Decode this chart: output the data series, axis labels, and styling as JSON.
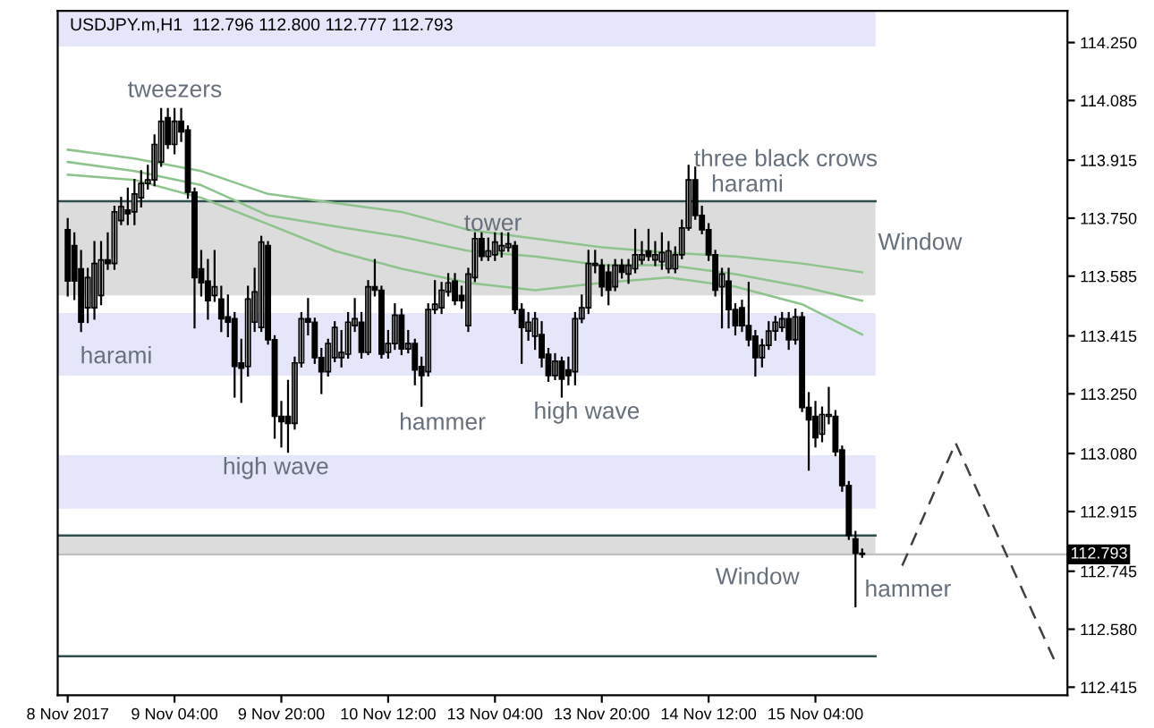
{
  "chart_data": {
    "type": "candlestick",
    "title": "USDJPY.m,H1  112.796 112.800 112.777 112.793",
    "categories": [
      "8 Nov 2017",
      null,
      null,
      null,
      null,
      null,
      null,
      null,
      null,
      null,
      null,
      null,
      null,
      null,
      null,
      null,
      "9 Nov 04:00",
      null,
      null,
      null,
      null,
      null,
      null,
      null,
      null,
      null,
      null,
      null,
      null,
      null,
      null,
      null,
      "9 Nov 20:00",
      null,
      null,
      null,
      null,
      null,
      null,
      null,
      null,
      null,
      null,
      null,
      null,
      null,
      null,
      null,
      "10 Nov 12:00",
      null,
      null,
      null,
      null,
      null,
      null,
      null,
      null,
      null,
      null,
      null,
      null,
      null,
      null,
      null,
      "13 Nov 04:00",
      null,
      null,
      null,
      null,
      null,
      null,
      null,
      null,
      null,
      null,
      null,
      null,
      null,
      null,
      null,
      "13 Nov 20:00",
      null,
      null,
      null,
      null,
      null,
      null,
      null,
      null,
      null,
      null,
      null,
      null,
      null,
      null,
      null,
      "14 Nov 12:00",
      null,
      null,
      null,
      null,
      null,
      null,
      null,
      null,
      null,
      null,
      null,
      null,
      null,
      null,
      null,
      "15 Nov 04:00",
      null,
      null,
      null,
      null,
      null,
      null,
      null,
      null,
      null,
      null,
      null,
      null,
      null,
      null,
      null,
      null,
      null,
      null,
      null,
      null,
      null,
      null,
      null,
      null,
      null,
      null,
      null,
      null,
      null,
      null,
      null,
      null,
      null,
      null,
      null,
      null,
      null
    ],
    "ohlc": [
      [
        113.717,
        113.748,
        113.53,
        113.571
      ],
      [
        113.672,
        113.707,
        113.52,
        113.571
      ],
      [
        113.606,
        113.657,
        113.429,
        113.454
      ],
      [
        113.495,
        113.606,
        113.454,
        113.581
      ],
      [
        113.495,
        113.682,
        113.464,
        113.621
      ],
      [
        113.53,
        113.682,
        113.505,
        113.631
      ],
      [
        113.631,
        113.707,
        113.606,
        113.621
      ],
      [
        113.621,
        113.783,
        113.606,
        113.768
      ],
      [
        113.743,
        113.808,
        113.733,
        113.783
      ],
      [
        113.773,
        113.834,
        113.733,
        113.763
      ],
      [
        113.768,
        113.859,
        113.733,
        113.819
      ],
      [
        113.808,
        113.884,
        113.783,
        113.849
      ],
      [
        113.849,
        113.899,
        113.834,
        113.859
      ],
      [
        113.859,
        113.986,
        113.844,
        113.96
      ],
      [
        113.91,
        114.061,
        113.899,
        114.026
      ],
      [
        114.036,
        114.061,
        113.95,
        113.96
      ],
      [
        113.96,
        114.061,
        113.935,
        114.026
      ],
      [
        114.026,
        114.061,
        113.97,
        113.996
      ],
      [
        114.001,
        114.011,
        113.808,
        113.824
      ],
      [
        113.824,
        113.834,
        113.439,
        113.581
      ],
      [
        113.606,
        113.657,
        113.53,
        113.566
      ],
      [
        113.571,
        113.631,
        113.464,
        113.515
      ],
      [
        113.53,
        113.657,
        113.515,
        113.555
      ],
      [
        113.52,
        113.555,
        113.429,
        113.464
      ],
      [
        113.469,
        113.53,
        113.414,
        113.454
      ],
      [
        113.464,
        113.48,
        113.242,
        113.328
      ],
      [
        113.338,
        113.404,
        113.227,
        113.323
      ],
      [
        113.328,
        113.555,
        113.302,
        113.52
      ],
      [
        113.454,
        113.606,
        113.429,
        113.54
      ],
      [
        113.439,
        113.697,
        113.429,
        113.682
      ],
      [
        113.672,
        113.682,
        113.393,
        113.404
      ],
      [
        113.404,
        113.414,
        113.125,
        113.186
      ],
      [
        113.186,
        113.227,
        113.1,
        113.171
      ],
      [
        113.186,
        113.287,
        113.085,
        113.166
      ],
      [
        113.166,
        113.353,
        113.151,
        113.338
      ],
      [
        113.338,
        113.48,
        113.328,
        113.464
      ],
      [
        113.464,
        113.52,
        113.419,
        113.454
      ],
      [
        113.454,
        113.464,
        113.338,
        113.353
      ],
      [
        113.353,
        113.378,
        113.252,
        113.313
      ],
      [
        113.313,
        113.404,
        113.302,
        113.393
      ],
      [
        113.353,
        113.454,
        113.343,
        113.439
      ],
      [
        113.353,
        113.429,
        113.328,
        113.368
      ],
      [
        113.363,
        113.48,
        113.353,
        113.454
      ],
      [
        113.444,
        113.52,
        113.429,
        113.464
      ],
      [
        113.454,
        113.48,
        113.353,
        113.368
      ],
      [
        113.368,
        113.571,
        113.363,
        113.555
      ],
      [
        113.555,
        113.631,
        113.53,
        113.545
      ],
      [
        113.545,
        113.555,
        113.353,
        113.363
      ],
      [
        113.368,
        113.429,
        113.353,
        113.393
      ],
      [
        113.393,
        113.505,
        113.378,
        113.474
      ],
      [
        113.474,
        113.49,
        113.363,
        113.378
      ],
      [
        113.378,
        113.429,
        113.368,
        113.393
      ],
      [
        113.393,
        113.404,
        113.277,
        113.318
      ],
      [
        113.328,
        113.353,
        113.216,
        113.302
      ],
      [
        113.313,
        113.505,
        113.302,
        113.49
      ],
      [
        113.49,
        113.571,
        113.48,
        113.505
      ],
      [
        113.495,
        113.566,
        113.48,
        113.545
      ],
      [
        113.54,
        113.591,
        113.53,
        113.566
      ],
      [
        113.571,
        113.591,
        113.505,
        113.515
      ],
      [
        113.53,
        113.555,
        113.495,
        113.515
      ],
      [
        113.444,
        113.606,
        113.429,
        113.591
      ],
      [
        113.581,
        113.707,
        113.571,
        113.692
      ],
      [
        113.692,
        113.707,
        113.631,
        113.641
      ],
      [
        113.641,
        113.692,
        113.631,
        113.657
      ],
      [
        113.646,
        113.707,
        113.631,
        113.682
      ],
      [
        113.657,
        113.707,
        113.641,
        113.672
      ],
      [
        113.667,
        113.707,
        113.657,
        113.677
      ],
      [
        113.672,
        113.682,
        113.48,
        113.49
      ],
      [
        113.49,
        113.505,
        113.338,
        113.439
      ],
      [
        113.429,
        113.48,
        113.404,
        113.454
      ],
      [
        113.414,
        113.48,
        113.378,
        113.464
      ],
      [
        113.419,
        113.454,
        113.328,
        113.353
      ],
      [
        113.363,
        113.378,
        113.287,
        113.302
      ],
      [
        113.302,
        113.363,
        113.292,
        113.343
      ],
      [
        113.343,
        113.353,
        113.242,
        113.292
      ],
      [
        113.318,
        113.353,
        113.277,
        113.302
      ],
      [
        113.313,
        113.48,
        113.277,
        113.464
      ],
      [
        113.464,
        113.53,
        113.454,
        113.495
      ],
      [
        113.495,
        113.657,
        113.48,
        113.621
      ],
      [
        113.616,
        113.657,
        113.596,
        113.621
      ],
      [
        113.616,
        113.631,
        113.53,
        113.555
      ],
      [
        113.596,
        113.616,
        113.505,
        113.545
      ],
      [
        113.555,
        113.631,
        113.545,
        113.616
      ],
      [
        113.616,
        113.631,
        113.581,
        113.596
      ],
      [
        113.591,
        113.631,
        113.566,
        113.616
      ],
      [
        113.606,
        113.717,
        113.596,
        113.646
      ],
      [
        113.631,
        113.682,
        113.621,
        113.646
      ],
      [
        113.657,
        113.717,
        113.631,
        113.641
      ],
      [
        113.631,
        113.682,
        113.616,
        113.646
      ],
      [
        113.626,
        113.707,
        113.606,
        113.652
      ],
      [
        113.606,
        113.682,
        113.596,
        113.657
      ],
      [
        113.606,
        113.667,
        113.596,
        113.646
      ],
      [
        113.646,
        113.743,
        113.636,
        113.722
      ],
      [
        113.722,
        113.899,
        113.717,
        113.859
      ],
      [
        113.859,
        113.894,
        113.748,
        113.758
      ],
      [
        113.758,
        113.783,
        113.707,
        113.717
      ],
      [
        113.717,
        113.733,
        113.631,
        113.646
      ],
      [
        113.646,
        113.657,
        113.53,
        113.545
      ],
      [
        113.555,
        113.606,
        113.439,
        113.591
      ],
      [
        113.571,
        113.606,
        113.439,
        113.49
      ],
      [
        113.49,
        113.505,
        113.419,
        113.444
      ],
      [
        113.495,
        113.515,
        113.429,
        113.444
      ],
      [
        113.444,
        113.566,
        113.388,
        113.404
      ],
      [
        113.414,
        113.429,
        113.302,
        113.353
      ],
      [
        113.353,
        113.404,
        113.328,
        113.388
      ],
      [
        113.388,
        113.454,
        113.378,
        113.429
      ],
      [
        113.429,
        113.469,
        113.404,
        113.454
      ],
      [
        113.439,
        113.48,
        113.429,
        113.464
      ],
      [
        113.464,
        113.48,
        113.378,
        113.404
      ],
      [
        113.404,
        113.49,
        113.393,
        113.469
      ],
      [
        113.469,
        113.48,
        113.201,
        113.211
      ],
      [
        113.211,
        113.252,
        113.034,
        113.176
      ],
      [
        113.186,
        113.227,
        113.1,
        113.125
      ],
      [
        113.135,
        113.211,
        113.115,
        113.191
      ],
      [
        113.186,
        113.267,
        113.166,
        113.191
      ],
      [
        113.186,
        113.201,
        113.075,
        113.085
      ],
      [
        113.09,
        113.1,
        112.974,
        112.989
      ],
      [
        112.989,
        112.999,
        112.837,
        112.847
      ],
      [
        112.837,
        112.857,
        112.645,
        112.796
      ],
      [
        112.796,
        112.807,
        112.786,
        112.793
      ],
      null,
      null,
      null,
      null,
      null,
      null,
      null,
      null,
      null,
      null,
      null,
      null,
      null,
      null,
      null,
      null,
      null,
      null,
      null,
      null,
      null,
      null,
      null,
      null,
      null,
      null,
      null,
      null,
      null,
      null
    ],
    "series": [
      {
        "type": "line",
        "color": "#8cc48c",
        "line_style": "solid",
        "values": [
          113.945,
          null,
          null,
          null,
          null,
          null,
          null,
          null,
          null,
          null,
          113.92,
          null,
          null,
          null,
          null,
          null,
          null,
          null,
          null,
          null,
          113.884,
          null,
          null,
          null,
          null,
          null,
          null,
          null,
          null,
          null,
          113.819,
          null,
          null,
          null,
          null,
          null,
          null,
          null,
          null,
          null,
          113.793,
          null,
          null,
          null,
          null,
          null,
          null,
          null,
          null,
          null,
          113.768,
          null,
          null,
          null,
          null,
          null,
          null,
          null,
          null,
          null,
          113.717,
          null,
          null,
          null,
          null,
          null,
          null,
          null,
          null,
          null,
          113.692,
          null,
          null,
          null,
          null,
          null,
          null,
          null,
          null,
          null,
          113.667,
          null,
          null,
          null,
          null,
          null,
          null,
          null,
          null,
          null,
          113.652,
          null,
          null,
          null,
          null,
          null,
          null,
          null,
          null,
          null,
          113.641,
          null,
          null,
          null,
          null,
          null,
          null,
          null,
          null,
          null,
          113.621,
          null,
          null,
          null,
          null,
          null,
          null,
          null,
          null,
          113.596,
          null,
          null,
          null,
          null,
          null,
          null,
          null,
          null,
          null,
          null,
          null,
          null,
          null,
          null,
          null,
          null,
          null,
          null,
          null,
          null,
          null,
          null,
          null,
          null,
          null,
          null,
          null,
          null,
          null,
          null
        ]
      },
      {
        "type": "line",
        "color": "#8cc48c",
        "line_style": "solid",
        "values": [
          113.91,
          null,
          null,
          null,
          null,
          null,
          null,
          null,
          null,
          null,
          113.884,
          null,
          null,
          null,
          null,
          null,
          null,
          null,
          null,
          null,
          113.844,
          null,
          null,
          null,
          null,
          null,
          null,
          null,
          null,
          null,
          113.758,
          null,
          null,
          null,
          null,
          null,
          null,
          null,
          null,
          null,
          113.727,
          null,
          null,
          null,
          null,
          null,
          null,
          null,
          null,
          null,
          113.697,
          null,
          null,
          null,
          null,
          null,
          null,
          null,
          null,
          null,
          113.657,
          null,
          null,
          null,
          null,
          null,
          null,
          null,
          null,
          null,
          113.641,
          null,
          null,
          null,
          null,
          null,
          null,
          null,
          null,
          null,
          113.616,
          null,
          null,
          null,
          null,
          null,
          null,
          null,
          null,
          null,
          113.616,
          null,
          null,
          null,
          null,
          null,
          null,
          null,
          null,
          null,
          113.591,
          null,
          null,
          null,
          null,
          null,
          null,
          null,
          null,
          null,
          113.555,
          null,
          null,
          null,
          null,
          null,
          null,
          null,
          null,
          113.515,
          null,
          null,
          null,
          null,
          null,
          null,
          null,
          null,
          null,
          null,
          null,
          null,
          null,
          null,
          null,
          null,
          null,
          null,
          null,
          null,
          null,
          null,
          null,
          null,
          null,
          null,
          null,
          null,
          null,
          null
        ]
      },
      {
        "type": "line",
        "color": "#8cc48c",
        "line_style": "solid",
        "values": [
          113.874,
          null,
          null,
          null,
          null,
          null,
          null,
          null,
          null,
          null,
          113.859,
          null,
          null,
          null,
          null,
          null,
          null,
          null,
          null,
          null,
          113.808,
          null,
          null,
          null,
          null,
          null,
          null,
          null,
          null,
          null,
          113.733,
          null,
          null,
          null,
          null,
          null,
          null,
          null,
          null,
          null,
          113.657,
          null,
          null,
          null,
          null,
          null,
          null,
          null,
          null,
          null,
          113.606,
          null,
          null,
          null,
          null,
          null,
          null,
          null,
          null,
          null,
          113.566,
          null,
          null,
          null,
          null,
          null,
          null,
          null,
          null,
          null,
          113.545,
          null,
          null,
          null,
          null,
          null,
          null,
          null,
          null,
          null,
          113.566,
          null,
          null,
          null,
          null,
          null,
          null,
          null,
          null,
          null,
          113.581,
          null,
          null,
          null,
          null,
          null,
          null,
          null,
          null,
          null,
          113.555,
          null,
          null,
          null,
          null,
          null,
          null,
          null,
          null,
          null,
          113.505,
          null,
          null,
          null,
          null,
          null,
          null,
          null,
          null,
          113.419,
          null,
          null,
          null,
          null,
          null,
          null,
          null,
          null,
          null,
          null,
          null,
          null,
          null,
          null,
          null,
          null,
          null,
          null,
          null,
          null,
          null,
          null,
          null,
          null,
          null,
          null,
          null,
          null,
          null,
          null
        ]
      },
      {
        "type": "line",
        "color": "#404040",
        "line_style": "dashed",
        "values": [
          null,
          null,
          null,
          null,
          null,
          null,
          null,
          null,
          null,
          null,
          null,
          null,
          null,
          null,
          null,
          null,
          null,
          null,
          null,
          null,
          null,
          null,
          null,
          null,
          null,
          null,
          null,
          null,
          null,
          null,
          null,
          null,
          null,
          null,
          null,
          null,
          null,
          null,
          null,
          null,
          null,
          null,
          null,
          null,
          null,
          null,
          null,
          null,
          null,
          null,
          null,
          null,
          null,
          null,
          null,
          null,
          null,
          null,
          null,
          null,
          null,
          null,
          null,
          null,
          null,
          null,
          null,
          null,
          null,
          null,
          null,
          null,
          null,
          null,
          null,
          null,
          null,
          null,
          null,
          null,
          null,
          null,
          null,
          null,
          null,
          null,
          null,
          null,
          null,
          null,
          null,
          null,
          null,
          null,
          null,
          null,
          null,
          null,
          null,
          null,
          null,
          null,
          null,
          null,
          null,
          null,
          null,
          null,
          null,
          null,
          null,
          null,
          null,
          null,
          null,
          null,
          null,
          null,
          null,
          null,
          null,
          null,
          null,
          null,
          null,
          112.761,
          null,
          null,
          null,
          null,
          null,
          null,
          null,
          113.11,
          null,
          null,
          null,
          null,
          null,
          null,
          null,
          null,
          null,
          null,
          null,
          null,
          null,
          null,
          112.483,
          null
        ]
      }
    ],
    "bands": [
      {
        "axis": "y",
        "from": 114.239,
        "to": 114.34,
        "color": "#e6e6fa"
      },
      {
        "axis": "y",
        "from": 113.53,
        "to": 113.798,
        "color": "#dcdcdc"
      },
      {
        "axis": "y",
        "from": 113.302,
        "to": 113.48,
        "color": "#e6e6fa"
      },
      {
        "axis": "y",
        "from": 112.923,
        "to": 113.075,
        "color": "#e6e6fa"
      },
      {
        "axis": "y",
        "from": 112.796,
        "to": 112.847,
        "color": "#dcdcdc"
      }
    ],
    "ref_lines": [
      {
        "axis": "y",
        "value": 113.798,
        "color": "#2f4f4f"
      },
      {
        "axis": "y",
        "value": 112.847,
        "color": "#2f4f4f"
      },
      {
        "axis": "y",
        "value": 112.503,
        "color": "#2f4f4f"
      },
      {
        "axis": "y",
        "value": 112.793,
        "label": "112.793",
        "color": "#c0c0c0"
      }
    ],
    "annotations": [
      "tweezers",
      "harami",
      "high wave",
      "hammer",
      "tower",
      "high wave",
      "three black crows",
      "harami",
      "Window",
      "Window",
      "hammer"
    ],
    "ylim": [
      112.392,
      114.34
    ],
    "yticks": [
      {
        "value": 114.25,
        "label": "114.250"
      },
      114.085,
      113.915,
      {
        "value": 113.75,
        "label": "113.750"
      },
      113.585,
      113.415,
      {
        "value": 113.25,
        "label": "113.250"
      },
      {
        "value": 113.08,
        "label": "113.080"
      },
      112.915,
      112.745,
      {
        "value": 112.58,
        "label": "112.580"
      },
      112.415
    ]
  }
}
